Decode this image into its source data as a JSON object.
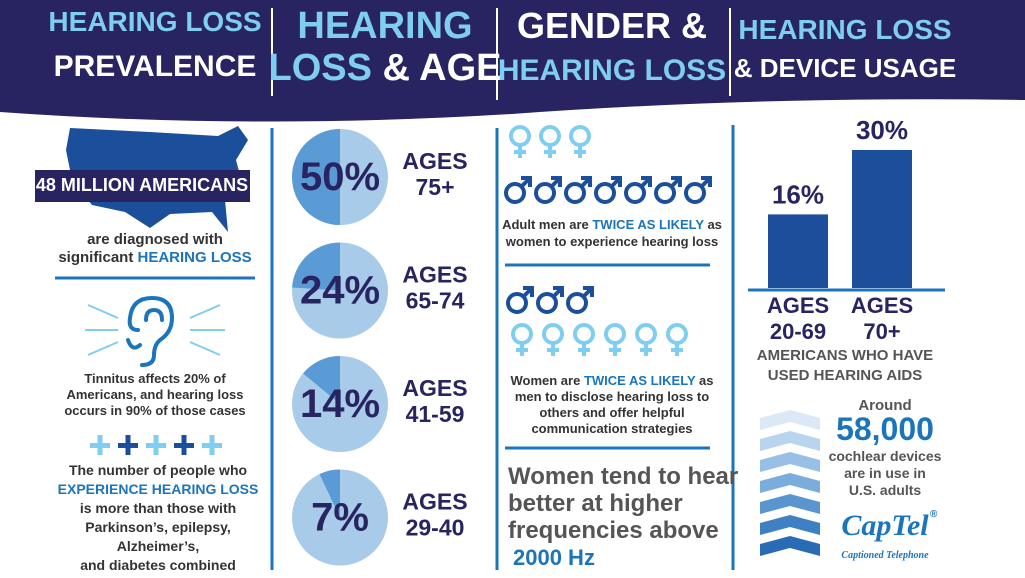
{
  "header": [
    {
      "line1": [
        "HEARING LOSS"
      ],
      "line2": [
        "PREVALENCE"
      ]
    },
    {
      "line1": [
        "HEARING"
      ],
      "line2": [
        "LOSS",
        " & AGE"
      ]
    },
    {
      "line1": [
        "GENDER &"
      ],
      "line2": [
        "HEARING LOSS"
      ]
    },
    {
      "line1": [
        "HEARING LOSS"
      ],
      "line2": [
        "& DEVICE USAGE"
      ]
    }
  ],
  "prevalence": {
    "banner": "48 MILLION AMERICANS",
    "diagnosed": [
      "are diagnosed with",
      "significant ",
      "HEARING LOSS"
    ],
    "tinnitus": [
      "Tinnitus affects 20% of",
      "Americans, and hearing loss",
      "occurs in 90% of those cases"
    ],
    "comparison": [
      "The number of people who",
      "EXPERIENCE HEARING LOSS",
      "is more than those with",
      "Parkinson’s, epilepsy,",
      "Alzheimer’s,",
      "and diabetes combined"
    ]
  },
  "age": {
    "pies": [
      {
        "value": 50,
        "label": "50%",
        "ages": "AGES",
        "range": "75+"
      },
      {
        "value": 24,
        "label": "24%",
        "ages": "AGES",
        "range": "65-74"
      },
      {
        "value": 14,
        "label": "14%",
        "ages": "AGES",
        "range": "41-59"
      },
      {
        "value": 7,
        "label": "7%",
        "ages": "AGES",
        "range": "29-40"
      }
    ]
  },
  "gender": {
    "men": [
      [
        "Adult men are ",
        "TWICE AS LIKELY",
        " as"
      ],
      [
        "women to experience hearing loss"
      ]
    ],
    "women": [
      [
        "Women are ",
        "TWICE AS LIKELY",
        " as"
      ],
      [
        "men to disclose hearing loss to"
      ],
      [
        "others and offer helpful"
      ],
      [
        "communication strategies"
      ]
    ],
    "frequency": [
      "Women tend to hear",
      "better at higher",
      "frequencies above",
      "2000 Hz"
    ]
  },
  "devices": {
    "bars": [
      {
        "value": 16,
        "label": "16%",
        "ages": "AGES",
        "range": "20-69"
      },
      {
        "value": 30,
        "label": "30%",
        "ages": "AGES",
        "range": "70+"
      }
    ],
    "caption": [
      "AMERICANS WHO HAVE",
      "USED HEARING AIDS"
    ],
    "cochlear": {
      "around": "Around",
      "count": "58,000",
      "lines": [
        "cochlear devices",
        "are in use in",
        "U.S. adults"
      ]
    },
    "logo": {
      "name": "CapTel",
      "mark": "®",
      "tagline": "Captioned Telephone"
    }
  }
}
